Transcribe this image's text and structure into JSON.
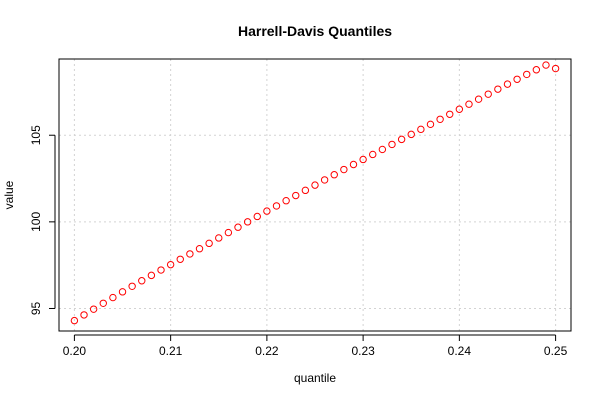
{
  "chart_data": {
    "type": "scatter",
    "title": "Harrell-Davis Quantiles",
    "xlabel": "quantile",
    "ylabel": "value",
    "xlim": [
      0.1984,
      0.2516
    ],
    "ylim": [
      93.7,
      109.4
    ],
    "x_ticks": [
      "0.20",
      "0.21",
      "0.22",
      "0.23",
      "0.24",
      "0.25"
    ],
    "x_tick_values": [
      0.2,
      0.21,
      0.22,
      0.23,
      0.24,
      0.25
    ],
    "y_ticks": [
      "95",
      "100",
      "105"
    ],
    "y_tick_values": [
      95,
      100,
      105
    ],
    "grid": true,
    "marker": "open-circle",
    "marker_color": "#ff0000",
    "series": [
      {
        "x": [
          0.2,
          0.201,
          0.202,
          0.203,
          0.204,
          0.205,
          0.206,
          0.207,
          0.208,
          0.209,
          0.21,
          0.211,
          0.212,
          0.213,
          0.214,
          0.215,
          0.216,
          0.217,
          0.218,
          0.219,
          0.22,
          0.221,
          0.222,
          0.223,
          0.224,
          0.225,
          0.226,
          0.227,
          0.228,
          0.229,
          0.23,
          0.231,
          0.232,
          0.233,
          0.234,
          0.235,
          0.236,
          0.237,
          0.238,
          0.239,
          0.24,
          0.241,
          0.242,
          0.243,
          0.244,
          0.245,
          0.246,
          0.247,
          0.248,
          0.249,
          0.25
        ],
        "y": [
          94.3,
          94.63,
          94.96,
          95.3,
          95.63,
          95.96,
          96.28,
          96.6,
          96.91,
          97.22,
          97.53,
          97.84,
          98.15,
          98.45,
          98.76,
          99.07,
          99.38,
          99.69,
          100.0,
          100.31,
          100.62,
          100.92,
          101.22,
          101.52,
          101.82,
          102.12,
          102.42,
          102.72,
          103.02,
          103.31,
          103.6,
          103.89,
          104.18,
          104.47,
          104.76,
          105.05,
          105.34,
          105.63,
          105.92,
          106.21,
          106.5,
          106.79,
          107.08,
          107.37,
          107.66,
          107.95,
          108.23,
          108.51,
          108.78,
          109.05,
          108.85
        ]
      }
    ]
  }
}
